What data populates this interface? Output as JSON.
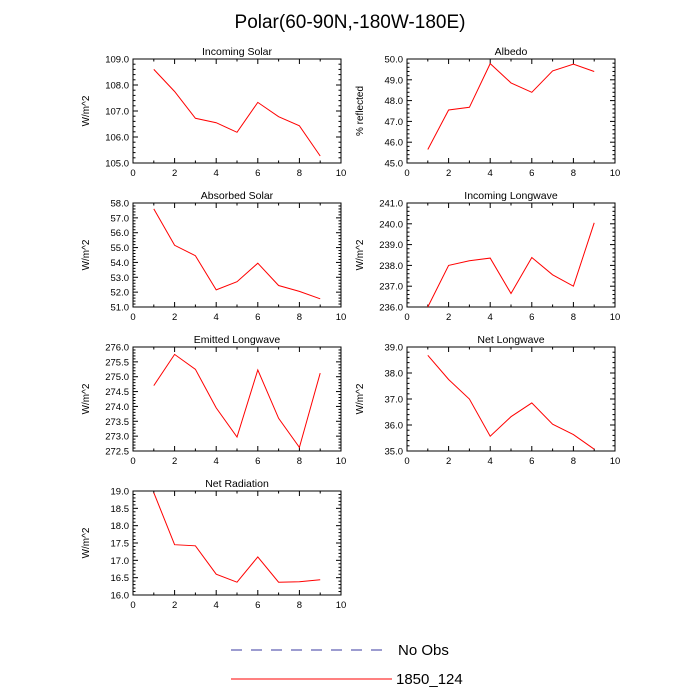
{
  "title": "Polar(60-90N,-180W-180E)",
  "colors": {
    "series": "#ff0000",
    "obs": "#3a3aa0"
  },
  "legend": [
    {
      "label": "No Obs",
      "style": "dashed",
      "color": "#3a3aa0"
    },
    {
      "label": "1850_124",
      "style": "solid",
      "color": "#ff0000"
    }
  ],
  "chart_data": [
    {
      "type": "line",
      "title": "Incoming Solar",
      "ylabel": "W/m^2",
      "xlim": [
        0,
        10
      ],
      "ylim": [
        105.0,
        109.0
      ],
      "xticks": [
        "0",
        "2",
        "4",
        "6",
        "8",
        "10"
      ],
      "yticks": [
        "105.0",
        "106.0",
        "107.0",
        "108.0",
        "109.0"
      ],
      "series": [
        {
          "name": "1850_124",
          "x": [
            1,
            2,
            3,
            4,
            5,
            6,
            7,
            8,
            9
          ],
          "values": [
            108.6,
            107.75,
            106.72,
            106.55,
            106.18,
            107.33,
            106.78,
            106.43,
            105.27
          ]
        }
      ]
    },
    {
      "type": "line",
      "title": "Albedo",
      "ylabel": "% reflected",
      "xlim": [
        0,
        10
      ],
      "ylim": [
        45.0,
        50.0
      ],
      "xticks": [
        "0",
        "2",
        "4",
        "6",
        "8",
        "10"
      ],
      "yticks": [
        "45.0",
        "46.0",
        "47.0",
        "48.0",
        "49.0",
        "50.0"
      ],
      "series": [
        {
          "name": "1850_124",
          "x": [
            1,
            2,
            3,
            4,
            5,
            6,
            7,
            8,
            9
          ],
          "values": [
            45.65,
            47.55,
            47.68,
            49.78,
            48.85,
            48.4,
            49.43,
            49.75,
            49.4
          ]
        }
      ]
    },
    {
      "type": "line",
      "title": "Absorbed Solar",
      "ylabel": "W/m^2",
      "xlim": [
        0,
        10
      ],
      "ylim": [
        51.0,
        58.0
      ],
      "xticks": [
        "0",
        "2",
        "4",
        "6",
        "8",
        "10"
      ],
      "yticks": [
        "51.0",
        "52.0",
        "53.0",
        "54.0",
        "55.0",
        "56.0",
        "57.0",
        "58.0"
      ],
      "series": [
        {
          "name": "1850_124",
          "x": [
            1,
            2,
            3,
            4,
            5,
            6,
            7,
            8,
            9
          ],
          "values": [
            57.6,
            55.15,
            54.45,
            52.15,
            52.7,
            53.95,
            52.45,
            52.05,
            51.55
          ]
        }
      ]
    },
    {
      "type": "line",
      "title": "Incoming Longwave",
      "ylabel": "W/m^2",
      "xlim": [
        0,
        10
      ],
      "ylim": [
        236.0,
        241.0
      ],
      "xticks": [
        "0",
        "2",
        "4",
        "6",
        "8",
        "10"
      ],
      "yticks": [
        "236.0",
        "237.0",
        "238.0",
        "239.0",
        "240.0",
        "241.0"
      ],
      "series": [
        {
          "name": "1850_124",
          "x": [
            1,
            2,
            3,
            4,
            5,
            6,
            7,
            8,
            9
          ],
          "values": [
            236.0,
            238.0,
            238.22,
            238.35,
            236.65,
            238.38,
            237.55,
            237.0,
            240.05
          ]
        }
      ]
    },
    {
      "type": "line",
      "title": "Emitted Longwave",
      "ylabel": "W/m^2",
      "xlim": [
        0,
        10
      ],
      "ylim": [
        272.5,
        276.0
      ],
      "xticks": [
        "0",
        "2",
        "4",
        "6",
        "8",
        "10"
      ],
      "yticks": [
        "272.5",
        "273.0",
        "273.5",
        "274.0",
        "274.5",
        "275.0",
        "275.5",
        "276.0"
      ],
      "series": [
        {
          "name": "1850_124",
          "x": [
            1,
            2,
            3,
            4,
            5,
            6,
            7,
            8,
            9
          ],
          "values": [
            274.7,
            275.75,
            275.25,
            273.95,
            272.97,
            275.23,
            273.6,
            272.62,
            275.12
          ]
        }
      ]
    },
    {
      "type": "line",
      "title": "Net Longwave",
      "ylabel": "W/m^2",
      "xlim": [
        0,
        10
      ],
      "ylim": [
        35.0,
        39.0
      ],
      "xticks": [
        "0",
        "2",
        "4",
        "6",
        "8",
        "10"
      ],
      "yticks": [
        "35.0",
        "36.0",
        "37.0",
        "38.0",
        "39.0"
      ],
      "series": [
        {
          "name": "1850_124",
          "x": [
            1,
            2,
            3,
            4,
            5,
            6,
            7,
            8,
            9
          ],
          "values": [
            38.68,
            37.75,
            37.0,
            35.57,
            36.32,
            36.85,
            36.03,
            35.63,
            35.07
          ]
        }
      ]
    },
    {
      "type": "line",
      "title": "Net Radiation",
      "ylabel": "W/m^2",
      "xlim": [
        0,
        10
      ],
      "ylim": [
        16.0,
        19.0
      ],
      "xticks": [
        "0",
        "2",
        "4",
        "6",
        "8",
        "10"
      ],
      "yticks": [
        "16.0",
        "16.5",
        "17.0",
        "17.5",
        "18.0",
        "18.5",
        "19.0"
      ],
      "series": [
        {
          "name": "1850_124",
          "x": [
            1,
            2,
            3,
            4,
            5,
            6,
            7,
            8,
            9
          ],
          "values": [
            18.95,
            17.45,
            17.42,
            16.6,
            16.37,
            17.1,
            16.37,
            16.38,
            16.44
          ]
        }
      ]
    }
  ]
}
